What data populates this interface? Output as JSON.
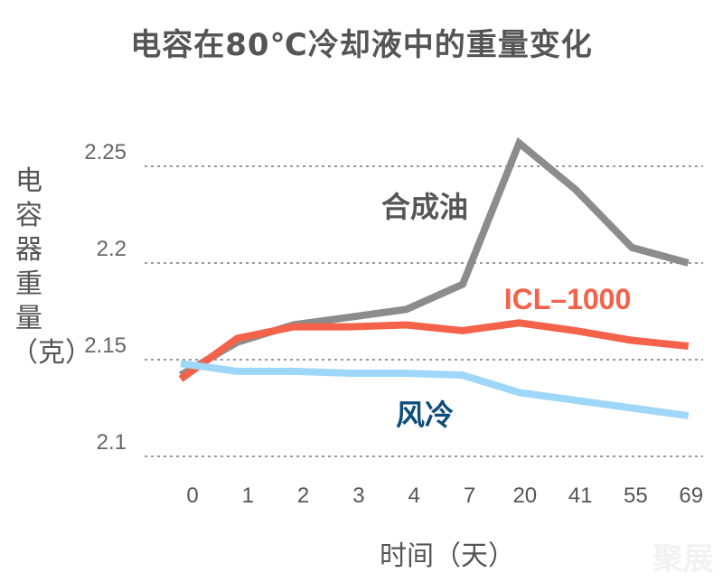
{
  "chart_data": {
    "type": "line",
    "title": "电容在80℃冷却液中的重量变化",
    "xlabel": "时间（天）",
    "ylabel": "电容器重量（克）",
    "categories": [
      "0",
      "1",
      "2",
      "3",
      "4",
      "7",
      "20",
      "41",
      "55",
      "69"
    ],
    "yticks": [
      "2.1",
      "2.15",
      "2.2",
      "2.25"
    ],
    "ylim": [
      2.1,
      2.27
    ],
    "grid": "horizontal dotted",
    "series": [
      {
        "name": "合成油",
        "color": "#8c8c8c",
        "label_color": "#555555",
        "values": [
          2.142,
          2.159,
          2.168,
          2.172,
          2.176,
          2.189,
          2.262,
          2.238,
          2.208,
          2.2
        ]
      },
      {
        "name": "ICL–1000",
        "color": "#f4624a",
        "label_color": "#f4624a",
        "values": [
          2.14,
          2.161,
          2.167,
          2.167,
          2.168,
          2.165,
          2.169,
          2.165,
          2.16,
          2.157
        ]
      },
      {
        "name": "风冷",
        "color": "#9fd7fb",
        "label_color": "#0e4d7a",
        "values": [
          2.148,
          2.144,
          2.144,
          2.143,
          2.143,
          2.142,
          2.133,
          2.129,
          2.125,
          2.121
        ]
      }
    ]
  },
  "watermark": "聚展"
}
